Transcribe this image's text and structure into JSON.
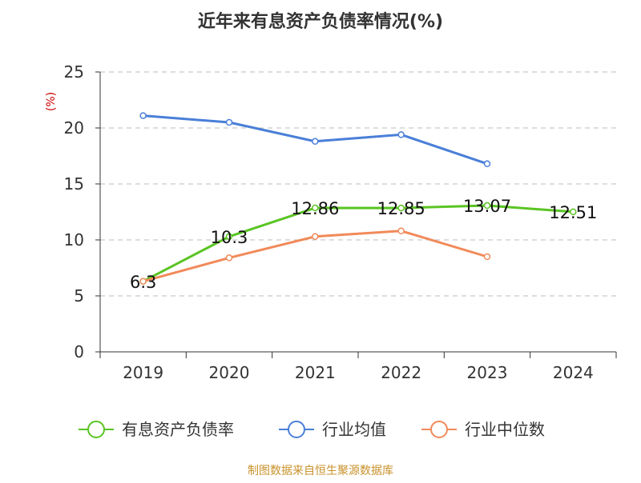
{
  "chart_data": {
    "type": "line",
    "title": "近年来有息资产负债率情况(%)",
    "ylabel": "(%)",
    "xlabel": "",
    "categories": [
      "2019",
      "2020",
      "2021",
      "2022",
      "2023",
      "2024"
    ],
    "ylim": [
      0,
      25
    ],
    "yticks": [
      0,
      5,
      10,
      15,
      20,
      25
    ],
    "grid": true,
    "legend_position": "bottom",
    "series": [
      {
        "name": "有息资产负债率",
        "color": "#5ac423",
        "values": [
          6.3,
          10.3,
          12.86,
          12.85,
          13.07,
          12.51
        ],
        "labels": [
          "6.3",
          "10.3",
          "12.86",
          "12.85",
          "13.07",
          "12.51"
        ]
      },
      {
        "name": "行业均值",
        "color": "#4a7fd8",
        "values": [
          21.1,
          20.5,
          18.8,
          19.4,
          16.8,
          null
        ]
      },
      {
        "name": "行业中位数",
        "color": "#f18a5a",
        "values": [
          6.3,
          8.4,
          10.3,
          10.8,
          8.5,
          null
        ]
      }
    ]
  },
  "source_note": "制图数据来自恒生聚源数据库",
  "colors": {
    "title": "#333333",
    "ylabel": "#cc0000",
    "axis": "#333333",
    "grid": "#bbbbbb",
    "source": "#c8922b"
  }
}
